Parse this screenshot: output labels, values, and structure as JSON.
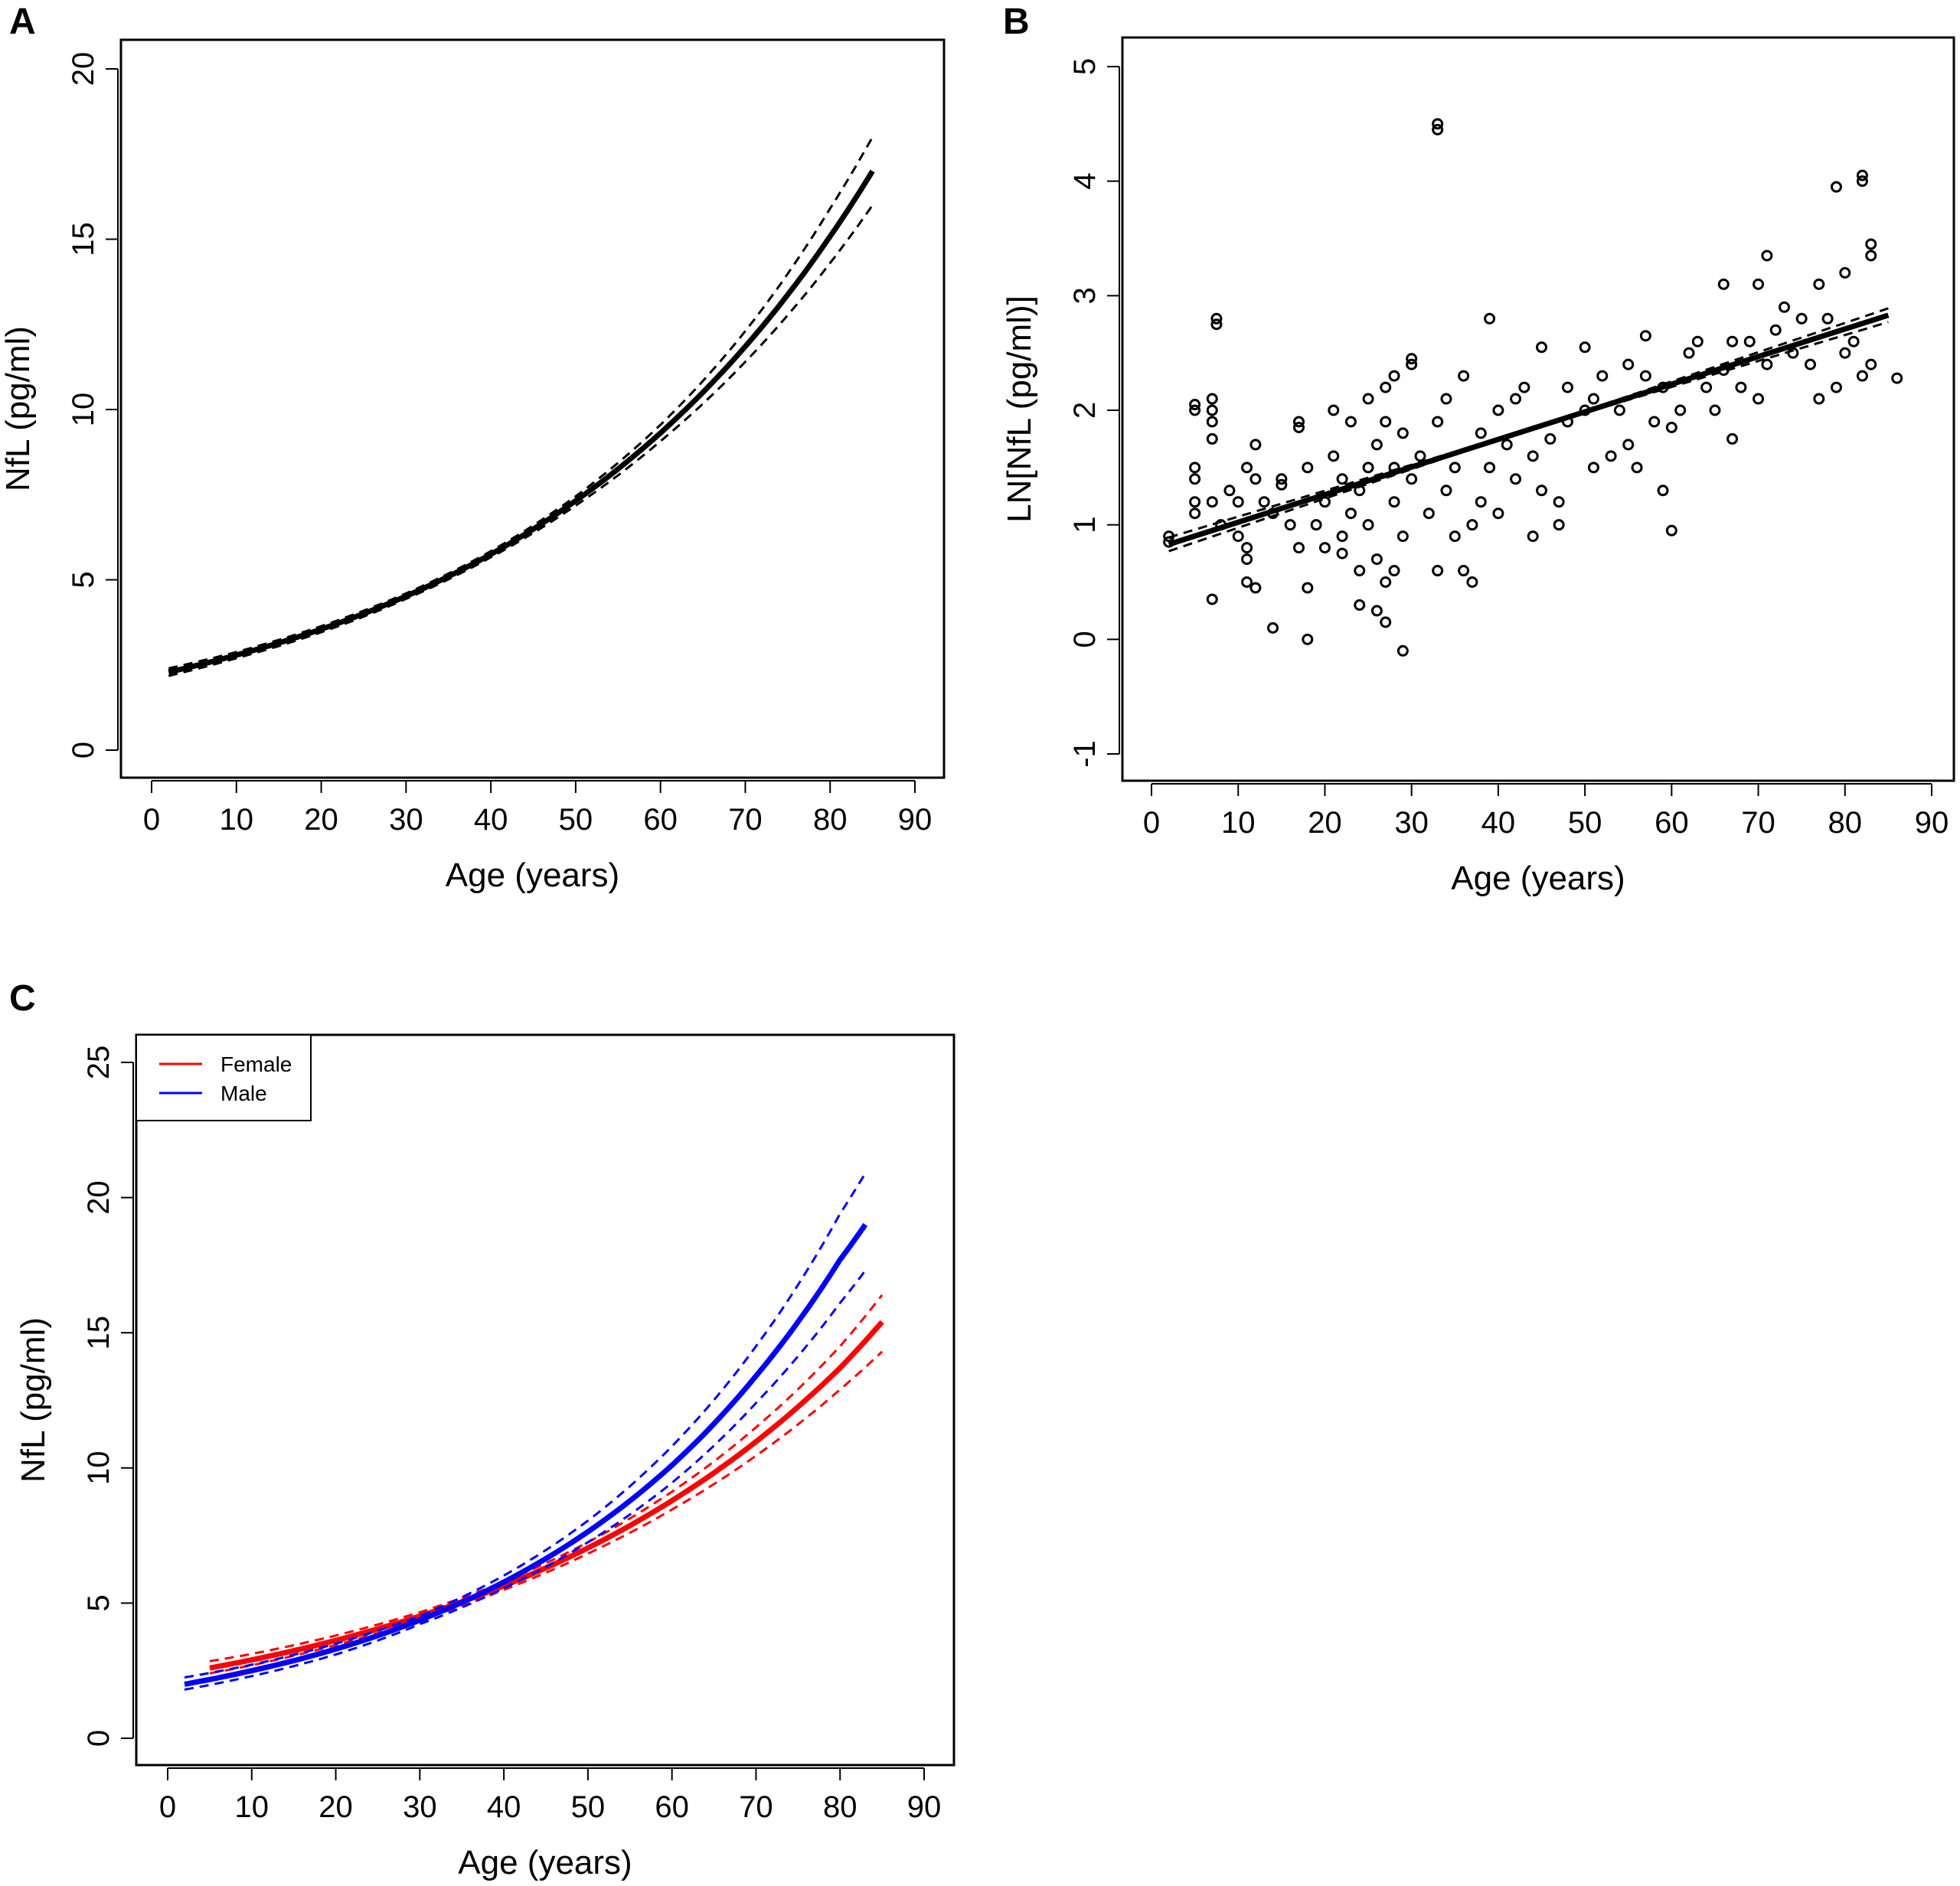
{
  "chart_data": [
    {
      "panel": "A",
      "type": "line",
      "xlabel": "Age (years)",
      "ylabel": "NfL (pg/ml)",
      "xlim": [
        0,
        90
      ],
      "ylim": [
        0,
        20
      ],
      "xticks": [
        0,
        10,
        20,
        30,
        40,
        50,
        60,
        70,
        80,
        90
      ],
      "yticks": [
        0,
        5,
        10,
        15,
        20
      ],
      "grid": false,
      "x": [
        2,
        10,
        20,
        30,
        40,
        50,
        60,
        70,
        80,
        85
      ],
      "series": [
        {
          "role": "fit",
          "color": "#000000",
          "style": "solid",
          "values": [
            2.29,
            2.79,
            3.55,
            4.52,
            5.75,
            7.32,
            9.31,
            11.85,
            15.08,
            17.0
          ]
        },
        {
          "role": "upper-ci",
          "color": "#000000",
          "style": "dashed",
          "values": [
            2.4,
            2.88,
            3.64,
            4.6,
            5.84,
            7.45,
            9.55,
            12.3,
            15.9,
            18.0
          ]
        },
        {
          "role": "lower-ci",
          "color": "#000000",
          "style": "dashed",
          "values": [
            2.18,
            2.7,
            3.46,
            4.44,
            5.66,
            7.18,
            9.07,
            11.4,
            14.3,
            16.0
          ]
        }
      ]
    },
    {
      "panel": "B",
      "type": "scatter",
      "xlabel": "Age (years)",
      "ylabel": "LN[NfL (pg/ml)]",
      "xlim": [
        0,
        90
      ],
      "ylim": [
        -1,
        5
      ],
      "xticks": [
        0,
        10,
        20,
        30,
        40,
        50,
        60,
        70,
        80,
        90
      ],
      "yticks": [
        -1,
        0,
        1,
        2,
        3,
        4,
        5
      ],
      "grid": false,
      "points": [
        [
          2,
          0.9
        ],
        [
          2,
          0.85
        ],
        [
          5,
          2.0
        ],
        [
          5,
          2.05
        ],
        [
          5,
          1.5
        ],
        [
          5,
          1.4
        ],
        [
          5,
          1.2
        ],
        [
          5,
          1.1
        ],
        [
          7.5,
          2.8
        ],
        [
          7.5,
          2.75
        ],
        [
          7,
          2.1
        ],
        [
          7,
          2.0
        ],
        [
          7,
          1.9
        ],
        [
          7,
          1.75
        ],
        [
          7,
          1.2
        ],
        [
          7,
          0.35
        ],
        [
          8,
          1.0
        ],
        [
          9,
          1.3
        ],
        [
          10,
          1.2
        ],
        [
          10,
          0.9
        ],
        [
          11,
          1.5
        ],
        [
          11,
          0.5
        ],
        [
          11,
          0.7
        ],
        [
          11,
          0.8
        ],
        [
          12,
          1.7
        ],
        [
          12,
          1.4
        ],
        [
          12,
          0.45
        ],
        [
          13,
          1.2
        ],
        [
          14,
          0.1
        ],
        [
          14,
          1.1
        ],
        [
          15,
          1.35
        ],
        [
          15,
          1.4
        ],
        [
          16,
          1.0
        ],
        [
          17,
          1.9
        ],
        [
          17,
          1.85
        ],
        [
          17,
          0.8
        ],
        [
          18,
          0.45
        ],
        [
          18,
          0.0
        ],
        [
          18,
          1.5
        ],
        [
          19,
          1.0
        ],
        [
          20,
          1.2
        ],
        [
          20,
          0.8
        ],
        [
          21,
          1.6
        ],
        [
          21,
          2.0
        ],
        [
          22,
          1.4
        ],
        [
          22,
          0.9
        ],
        [
          22,
          0.75
        ],
        [
          23,
          1.1
        ],
        [
          23,
          1.9
        ],
        [
          24,
          1.3
        ],
        [
          24,
          0.6
        ],
        [
          24,
          0.3
        ],
        [
          25,
          1.5
        ],
        [
          25,
          2.1
        ],
        [
          25,
          1.0
        ],
        [
          26,
          0.7
        ],
        [
          26,
          1.7
        ],
        [
          26,
          0.25
        ],
        [
          27,
          0.5
        ],
        [
          27,
          0.15
        ],
        [
          27,
          1.9
        ],
        [
          27,
          2.2
        ],
        [
          28,
          1.2
        ],
        [
          28,
          1.5
        ],
        [
          28,
          0.6
        ],
        [
          28,
          2.3
        ],
        [
          29,
          -0.1
        ],
        [
          29,
          0.9
        ],
        [
          29,
          1.8
        ],
        [
          30,
          1.4
        ],
        [
          30,
          2.45
        ],
        [
          30,
          2.4
        ],
        [
          31,
          1.6
        ],
        [
          32,
          1.1
        ],
        [
          33,
          4.5
        ],
        [
          33,
          4.45
        ],
        [
          33,
          0.6
        ],
        [
          33,
          1.9
        ],
        [
          34,
          1.3
        ],
        [
          34,
          2.1
        ],
        [
          35,
          0.9
        ],
        [
          35,
          1.5
        ],
        [
          36,
          0.6
        ],
        [
          36,
          2.3
        ],
        [
          37,
          1.0
        ],
        [
          37,
          0.5
        ],
        [
          38,
          1.2
        ],
        [
          38,
          1.8
        ],
        [
          39,
          2.8
        ],
        [
          39,
          1.5
        ],
        [
          40,
          2.0
        ],
        [
          40,
          1.1
        ],
        [
          41,
          1.7
        ],
        [
          42,
          2.1
        ],
        [
          42,
          1.4
        ],
        [
          43,
          2.2
        ],
        [
          44,
          0.9
        ],
        [
          44,
          1.6
        ],
        [
          45,
          2.55
        ],
        [
          45,
          1.3
        ],
        [
          46,
          1.75
        ],
        [
          47,
          1.0
        ],
        [
          47,
          1.2
        ],
        [
          48,
          1.9
        ],
        [
          48,
          2.2
        ],
        [
          50,
          2.0
        ],
        [
          50,
          2.55
        ],
        [
          51,
          1.5
        ],
        [
          51,
          2.1
        ],
        [
          52,
          2.3
        ],
        [
          53,
          1.6
        ],
        [
          54,
          2.0
        ],
        [
          55,
          2.4
        ],
        [
          55,
          1.7
        ],
        [
          56,
          1.5
        ],
        [
          57,
          2.3
        ],
        [
          57,
          2.65
        ],
        [
          58,
          1.9
        ],
        [
          59,
          2.2
        ],
        [
          59,
          1.3
        ],
        [
          60,
          0.95
        ],
        [
          60,
          1.85
        ],
        [
          61,
          2.0
        ],
        [
          62,
          2.5
        ],
        [
          63,
          2.6
        ],
        [
          64,
          2.2
        ],
        [
          65,
          2.0
        ],
        [
          66,
          2.35
        ],
        [
          66,
          3.1
        ],
        [
          67,
          1.75
        ],
        [
          67,
          2.6
        ],
        [
          68,
          2.2
        ],
        [
          69,
          2.6
        ],
        [
          70,
          3.1
        ],
        [
          70,
          2.1
        ],
        [
          71,
          3.35
        ],
        [
          71,
          2.4
        ],
        [
          72,
          2.7
        ],
        [
          73,
          2.9
        ],
        [
          74,
          2.5
        ],
        [
          75,
          2.8
        ],
        [
          76,
          2.4
        ],
        [
          77,
          3.1
        ],
        [
          77,
          2.1
        ],
        [
          78,
          2.8
        ],
        [
          79,
          3.95
        ],
        [
          79,
          2.2
        ],
        [
          80,
          3.2
        ],
        [
          80,
          2.5
        ],
        [
          81,
          2.6
        ],
        [
          82,
          4.05
        ],
        [
          82,
          4.0
        ],
        [
          83,
          3.45
        ],
        [
          83,
          3.35
        ],
        [
          82,
          2.3
        ],
        [
          83,
          2.4
        ],
        [
          86,
          2.28
        ]
      ],
      "fit_line": {
        "x": [
          2,
          85
        ],
        "y": [
          0.83,
          2.83
        ],
        "color": "#000000"
      }
    },
    {
      "panel": "C",
      "type": "line",
      "xlabel": "Age (years)",
      "ylabel": "NfL (pg/ml)",
      "xlim": [
        0,
        90
      ],
      "ylim": [
        0,
        25
      ],
      "xticks": [
        0,
        10,
        20,
        30,
        40,
        50,
        60,
        70,
        80,
        90
      ],
      "yticks": [
        0,
        5,
        10,
        15,
        20,
        25
      ],
      "grid": false,
      "legend": "top-left",
      "series": [
        {
          "name": "Female",
          "color": "#ff0000",
          "x": [
            5,
            10,
            20,
            30,
            40,
            50,
            60,
            70,
            80,
            85
          ],
          "fit": [
            2.6,
            2.9,
            3.62,
            4.52,
            5.64,
            7.04,
            8.79,
            10.97,
            13.7,
            15.4
          ],
          "upper": [
            2.85,
            3.12,
            3.8,
            4.66,
            5.79,
            7.25,
            9.12,
            11.5,
            14.5,
            16.4
          ],
          "lower": [
            2.4,
            2.7,
            3.45,
            4.38,
            5.49,
            6.83,
            8.46,
            10.45,
            12.9,
            14.3
          ]
        },
        {
          "name": "Male",
          "color": "#0000ff",
          "x": [
            2,
            10,
            20,
            30,
            40,
            50,
            60,
            70,
            80,
            83
          ],
          "fit": [
            2.0,
            2.5,
            3.3,
            4.37,
            5.78,
            7.64,
            10.1,
            13.4,
            17.7,
            19.0
          ],
          "upper": [
            2.25,
            2.72,
            3.5,
            4.52,
            6.02,
            8.05,
            10.8,
            14.5,
            19.4,
            20.9
          ],
          "lower": [
            1.8,
            2.3,
            3.1,
            4.22,
            5.55,
            7.25,
            9.45,
            12.4,
            16.1,
            17.3
          ]
        }
      ]
    }
  ],
  "panel_labels": [
    "A",
    "B",
    "C"
  ]
}
